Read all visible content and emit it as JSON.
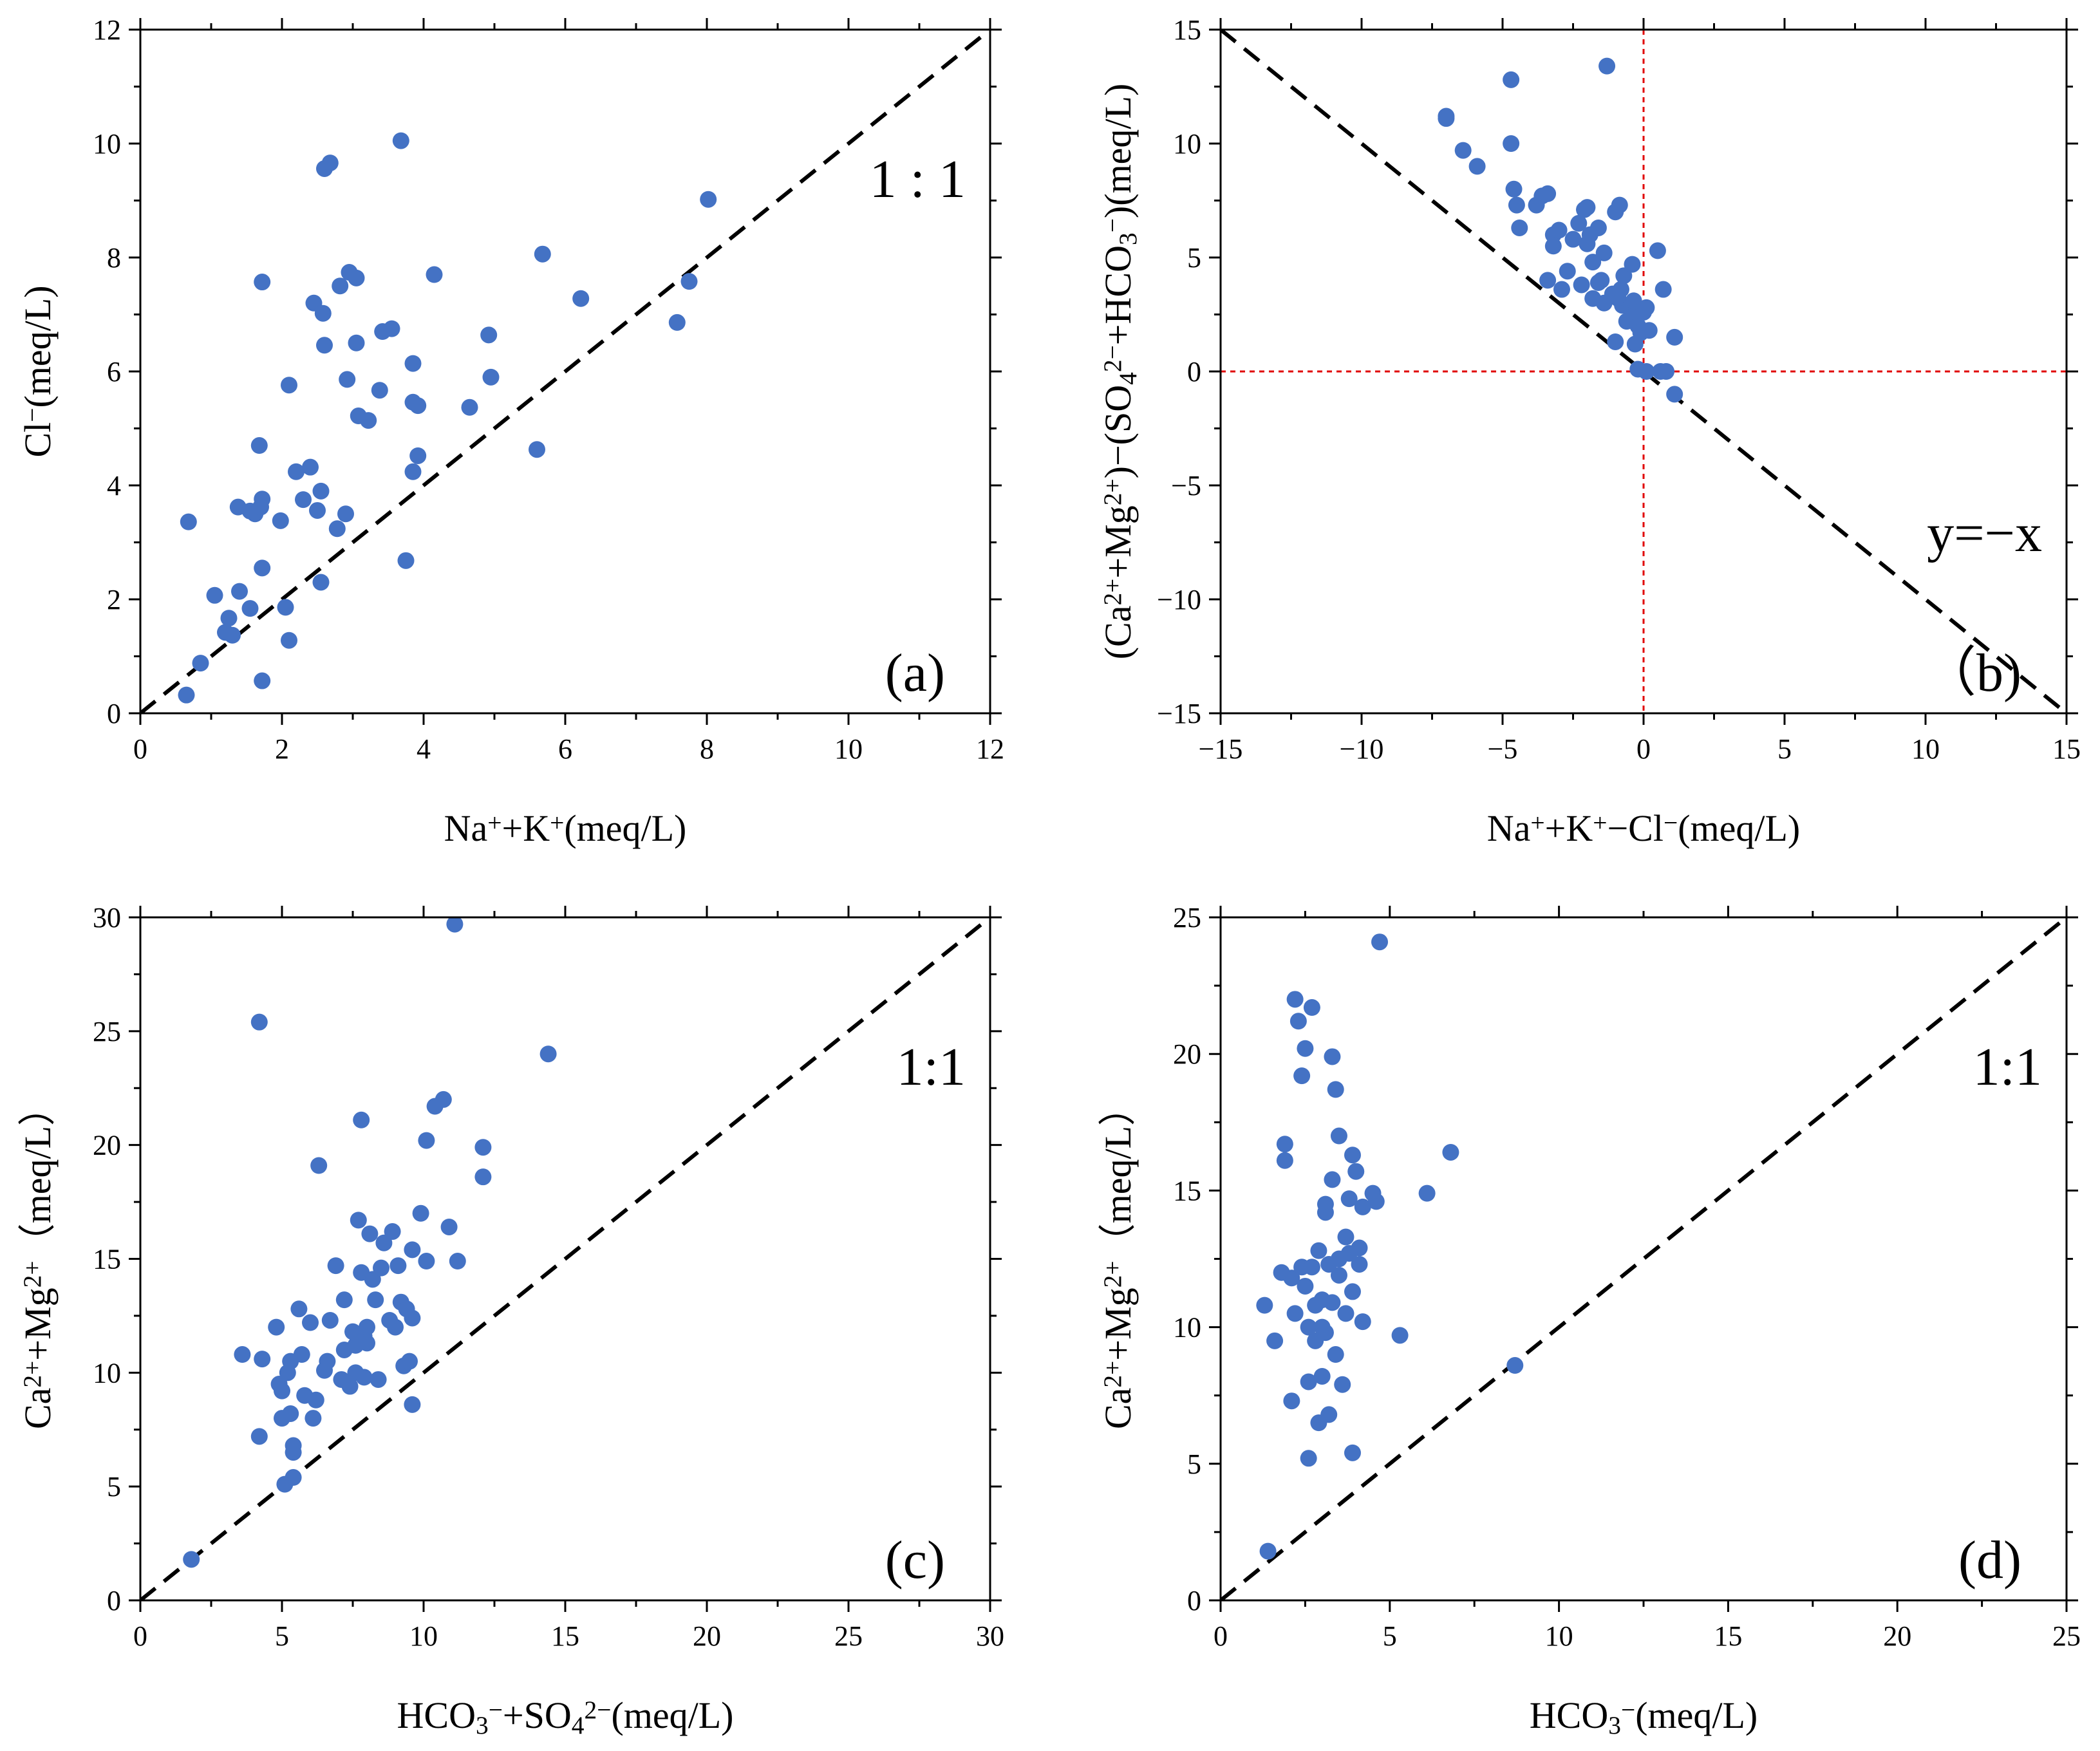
{
  "colors": {
    "point": "#4472C4",
    "axis": "#000000",
    "refline": "#000000",
    "zeroline": "#E00000"
  },
  "chart_data": [
    {
      "type": "scatter",
      "panel_label": "(a)",
      "ref_label": "1 : 1",
      "xlim": [
        0,
        12
      ],
      "ylim": [
        0,
        12
      ],
      "xticks": [
        0,
        2,
        4,
        6,
        8,
        10,
        12
      ],
      "yticks": [
        0,
        2,
        4,
        6,
        8,
        10,
        12
      ],
      "xlabel_parts": [
        [
          "Na",
          "n"
        ],
        [
          "+",
          "sup"
        ],
        [
          "+K",
          "n"
        ],
        [
          "+",
          "sup"
        ],
        [
          "(meq/L)",
          "n"
        ]
      ],
      "ylabel_parts": [
        [
          "Cl",
          "n"
        ],
        [
          "−",
          "sup"
        ],
        [
          "(meq/L)",
          "n"
        ]
      ],
      "reference": "y=x",
      "points": [
        [
          0.65,
          0.32
        ],
        [
          0.68,
          3.36
        ],
        [
          0.85,
          0.88
        ],
        [
          1.05,
          2.07
        ],
        [
          1.2,
          1.42
        ],
        [
          1.25,
          1.67
        ],
        [
          1.3,
          1.37
        ],
        [
          1.38,
          3.62
        ],
        [
          1.4,
          2.14
        ],
        [
          1.55,
          3.55
        ],
        [
          1.55,
          1.84
        ],
        [
          1.62,
          3.5
        ],
        [
          1.7,
          3.62
        ],
        [
          1.72,
          3.76
        ],
        [
          1.68,
          4.7
        ],
        [
          1.72,
          7.57
        ],
        [
          1.72,
          2.55
        ],
        [
          1.72,
          0.57
        ],
        [
          1.98,
          3.38
        ],
        [
          2.05,
          1.86
        ],
        [
          2.1,
          1.28
        ],
        [
          2.1,
          5.76
        ],
        [
          2.2,
          4.24
        ],
        [
          2.3,
          3.75
        ],
        [
          2.4,
          4.32
        ],
        [
          2.45,
          7.2
        ],
        [
          2.5,
          3.56
        ],
        [
          2.55,
          3.9
        ],
        [
          2.55,
          2.3
        ],
        [
          2.58,
          7.02
        ],
        [
          2.6,
          6.46
        ],
        [
          2.6,
          9.56
        ],
        [
          2.68,
          9.66
        ],
        [
          2.78,
          3.24
        ],
        [
          2.82,
          7.5
        ],
        [
          2.9,
          3.5
        ],
        [
          2.92,
          5.86
        ],
        [
          2.95,
          7.74
        ],
        [
          3.05,
          6.5
        ],
        [
          3.05,
          7.64
        ],
        [
          3.08,
          5.22
        ],
        [
          3.22,
          5.14
        ],
        [
          3.38,
          5.67
        ],
        [
          3.42,
          6.7
        ],
        [
          3.55,
          6.75
        ],
        [
          3.68,
          10.05
        ],
        [
          3.75,
          2.68
        ],
        [
          3.85,
          5.46
        ],
        [
          3.85,
          6.14
        ],
        [
          3.85,
          4.24
        ],
        [
          3.92,
          5.4
        ],
        [
          3.92,
          4.52
        ],
        [
          4.15,
          7.7
        ],
        [
          4.65,
          5.37
        ],
        [
          4.92,
          6.64
        ],
        [
          4.95,
          5.9
        ],
        [
          5.6,
          4.63
        ],
        [
          5.68,
          8.06
        ],
        [
          6.22,
          7.28
        ],
        [
          7.58,
          6.86
        ],
        [
          7.75,
          7.58
        ],
        [
          8.02,
          9.02
        ]
      ]
    },
    {
      "type": "scatter",
      "panel_label": "（b)",
      "ref_label": "y=−x",
      "xlim": [
        -15,
        15
      ],
      "ylim": [
        -15,
        15
      ],
      "xticks": [
        -15,
        -10,
        -5,
        0,
        5,
        10,
        15
      ],
      "yticks": [
        -15,
        -10,
        -5,
        0,
        5,
        10,
        15
      ],
      "xlabel_parts": [
        [
          "Na",
          "n"
        ],
        [
          "+",
          "sup"
        ],
        [
          "+K",
          "n"
        ],
        [
          "+",
          "sup"
        ],
        [
          "−Cl",
          "n"
        ],
        [
          "−",
          "sup"
        ],
        [
          "(meq/L)",
          "n"
        ]
      ],
      "ylabel_parts": [
        [
          "(Ca",
          "n"
        ],
        [
          "2+",
          "sup"
        ],
        [
          "+Mg",
          "n"
        ],
        [
          "2+",
          "sup"
        ],
        [
          ")−(SO",
          "n"
        ],
        [
          "4",
          "sub"
        ],
        [
          "2−",
          "sup"
        ],
        [
          "+HCO",
          "n"
        ],
        [
          "3",
          "sub"
        ],
        [
          "−",
          "sup"
        ],
        [
          ")(meq/L)",
          "n"
        ]
      ],
      "reference": "y=-x",
      "zero_lines": true,
      "points": [
        [
          -7.0,
          11.1
        ],
        [
          -7.0,
          11.2
        ],
        [
          -6.4,
          9.7
        ],
        [
          -5.9,
          9.0
        ],
        [
          -4.7,
          12.8
        ],
        [
          -4.7,
          10.0
        ],
        [
          -4.6,
          8.0
        ],
        [
          -4.5,
          7.3
        ],
        [
          -4.4,
          6.3
        ],
        [
          -3.8,
          7.3
        ],
        [
          -3.6,
          7.7
        ],
        [
          -3.4,
          7.8
        ],
        [
          -3.4,
          4.0
        ],
        [
          -3.2,
          6.0
        ],
        [
          -3.2,
          5.5
        ],
        [
          -3.0,
          6.2
        ],
        [
          -2.9,
          3.6
        ],
        [
          -2.7,
          4.4
        ],
        [
          -2.5,
          5.8
        ],
        [
          -2.3,
          6.5
        ],
        [
          -2.2,
          3.8
        ],
        [
          -2.1,
          7.1
        ],
        [
          -2.0,
          7.2
        ],
        [
          -2.0,
          5.6
        ],
        [
          -1.9,
          6.0
        ],
        [
          -1.8,
          3.2
        ],
        [
          -1.8,
          4.8
        ],
        [
          -1.6,
          6.3
        ],
        [
          -1.6,
          3.9
        ],
        [
          -1.5,
          4.0
        ],
        [
          -1.4,
          5.2
        ],
        [
          -1.4,
          3.0
        ],
        [
          -1.3,
          13.4
        ],
        [
          -1.1,
          3.4
        ],
        [
          -1.0,
          7.0
        ],
        [
          -1.0,
          1.3
        ],
        [
          -0.9,
          3.2
        ],
        [
          -0.85,
          7.3
        ],
        [
          -0.8,
          3.6
        ],
        [
          -0.75,
          2.9
        ],
        [
          -0.7,
          4.2
        ],
        [
          -0.6,
          2.2
        ],
        [
          -0.5,
          2.8
        ],
        [
          -0.4,
          2.4
        ],
        [
          -0.4,
          4.7
        ],
        [
          -0.35,
          3.1
        ],
        [
          -0.3,
          1.2
        ],
        [
          -0.2,
          2.0
        ],
        [
          -0.2,
          0.1
        ],
        [
          -0.1,
          1.7
        ],
        [
          0.0,
          2.6
        ],
        [
          0.1,
          2.8
        ],
        [
          0.1,
          0.0
        ],
        [
          0.2,
          1.8
        ],
        [
          0.5,
          5.3
        ],
        [
          0.6,
          0.0
        ],
        [
          0.7,
          3.6
        ],
        [
          0.8,
          0.0
        ],
        [
          1.1,
          1.5
        ],
        [
          1.1,
          -1.0
        ]
      ]
    },
    {
      "type": "scatter",
      "panel_label": "(c)",
      "ref_label": "1:1",
      "xlim": [
        0,
        30
      ],
      "ylim": [
        0,
        30
      ],
      "xticks": [
        0,
        5,
        10,
        15,
        20,
        25,
        30
      ],
      "yticks": [
        0,
        5,
        10,
        15,
        20,
        25,
        30
      ],
      "xlabel_parts": [
        [
          "HCO",
          "n"
        ],
        [
          "3",
          "sub"
        ],
        [
          "−",
          "sup"
        ],
        [
          "+SO",
          "n"
        ],
        [
          "4",
          "sub"
        ],
        [
          "2−",
          "sup"
        ],
        [
          "(meq/L)",
          "n"
        ]
      ],
      "ylabel_parts": [
        [
          "Ca",
          "n"
        ],
        [
          "2+",
          "sup"
        ],
        [
          "+Mg",
          "n"
        ],
        [
          "2+",
          "sup"
        ],
        [
          "（meq/L）",
          "n"
        ]
      ],
      "reference": "y=x",
      "points": [
        [
          1.8,
          1.8
        ],
        [
          3.6,
          10.8
        ],
        [
          4.2,
          25.4
        ],
        [
          4.2,
          7.2
        ],
        [
          4.3,
          10.6
        ],
        [
          4.8,
          12.0
        ],
        [
          4.9,
          9.5
        ],
        [
          5.0,
          9.2
        ],
        [
          5.0,
          8.0
        ],
        [
          5.1,
          5.1
        ],
        [
          5.2,
          10.0
        ],
        [
          5.3,
          8.2
        ],
        [
          5.3,
          10.5
        ],
        [
          5.4,
          6.8
        ],
        [
          5.4,
          6.5
        ],
        [
          5.4,
          5.4
        ],
        [
          5.6,
          12.8
        ],
        [
          5.7,
          10.8
        ],
        [
          5.8,
          9.0
        ],
        [
          6.0,
          12.2
        ],
        [
          6.1,
          8.0
        ],
        [
          6.2,
          8.8
        ],
        [
          6.3,
          19.1
        ],
        [
          6.5,
          10.1
        ],
        [
          6.6,
          10.5
        ],
        [
          6.7,
          12.3
        ],
        [
          6.9,
          14.7
        ],
        [
          7.1,
          9.7
        ],
        [
          7.2,
          13.2
        ],
        [
          7.2,
          11.0
        ],
        [
          7.4,
          9.4
        ],
        [
          7.5,
          11.8
        ],
        [
          7.6,
          11.2
        ],
        [
          7.6,
          10.0
        ],
        [
          7.7,
          16.7
        ],
        [
          7.8,
          14.4
        ],
        [
          7.8,
          21.1
        ],
        [
          7.9,
          11.6
        ],
        [
          7.9,
          9.8
        ],
        [
          8.0,
          12.0
        ],
        [
          8.0,
          11.3
        ],
        [
          8.1,
          16.1
        ],
        [
          8.2,
          14.1
        ],
        [
          8.3,
          13.2
        ],
        [
          8.4,
          9.7
        ],
        [
          8.5,
          14.6
        ],
        [
          8.6,
          15.7
        ],
        [
          8.8,
          12.3
        ],
        [
          8.9,
          16.2
        ],
        [
          9.0,
          12.0
        ],
        [
          9.1,
          14.7
        ],
        [
          9.2,
          13.1
        ],
        [
          9.3,
          10.3
        ],
        [
          9.4,
          12.8
        ],
        [
          9.5,
          10.5
        ],
        [
          9.6,
          8.6
        ],
        [
          9.6,
          12.4
        ],
        [
          9.6,
          15.4
        ],
        [
          9.9,
          17.0
        ],
        [
          10.1,
          20.2
        ],
        [
          10.1,
          14.9
        ],
        [
          10.4,
          21.7
        ],
        [
          10.7,
          22.0
        ],
        [
          10.9,
          16.4
        ],
        [
          11.1,
          29.7
        ],
        [
          11.2,
          14.9
        ],
        [
          12.1,
          19.9
        ],
        [
          12.1,
          18.6
        ],
        [
          14.4,
          24.0
        ]
      ]
    },
    {
      "type": "scatter",
      "panel_label": "(d)",
      "ref_label": "1:1",
      "xlim": [
        0,
        25
      ],
      "ylim": [
        0,
        25
      ],
      "xticks": [
        0,
        5,
        10,
        15,
        20,
        25
      ],
      "yticks": [
        0,
        5,
        10,
        15,
        20,
        25
      ],
      "xlabel_parts": [
        [
          "HCO",
          "n"
        ],
        [
          "3",
          "sub"
        ],
        [
          "−",
          "sup"
        ],
        [
          "(meq/L)",
          "n"
        ]
      ],
      "ylabel_parts": [
        [
          "Ca",
          "n"
        ],
        [
          "2+",
          "sup"
        ],
        [
          "+Mg",
          "n"
        ],
        [
          "2+",
          "sup"
        ],
        [
          "（meq/L）",
          "n"
        ]
      ],
      "reference": "y=x",
      "points": [
        [
          1.3,
          10.8
        ],
        [
          1.4,
          1.8
        ],
        [
          1.6,
          9.5
        ],
        [
          1.8,
          12.0
        ],
        [
          1.9,
          16.1
        ],
        [
          1.9,
          16.7
        ],
        [
          2.1,
          11.8
        ],
        [
          2.1,
          7.3
        ],
        [
          2.2,
          10.5
        ],
        [
          2.2,
          22.0
        ],
        [
          2.3,
          21.2
        ],
        [
          2.4,
          19.2
        ],
        [
          2.4,
          12.2
        ],
        [
          2.5,
          11.5
        ],
        [
          2.5,
          20.2
        ],
        [
          2.6,
          8.0
        ],
        [
          2.6,
          5.2
        ],
        [
          2.6,
          10.0
        ],
        [
          2.7,
          12.2
        ],
        [
          2.7,
          21.7
        ],
        [
          2.8,
          10.8
        ],
        [
          2.8,
          9.5
        ],
        [
          2.9,
          12.8
        ],
        [
          2.9,
          6.5
        ],
        [
          3.0,
          8.2
        ],
        [
          3.0,
          11.0
        ],
        [
          3.0,
          10.0
        ],
        [
          3.1,
          14.2
        ],
        [
          3.1,
          14.5
        ],
        [
          3.1,
          9.8
        ],
        [
          3.2,
          6.8
        ],
        [
          3.2,
          12.3
        ],
        [
          3.3,
          19.9
        ],
        [
          3.3,
          15.4
        ],
        [
          3.3,
          10.9
        ],
        [
          3.4,
          18.7
        ],
        [
          3.4,
          9.0
        ],
        [
          3.5,
          17.0
        ],
        [
          3.5,
          12.5
        ],
        [
          3.5,
          11.9
        ],
        [
          3.6,
          7.9
        ],
        [
          3.7,
          13.3
        ],
        [
          3.7,
          10.5
        ],
        [
          3.8,
          14.7
        ],
        [
          3.8,
          12.7
        ],
        [
          3.9,
          11.3
        ],
        [
          3.9,
          5.4
        ],
        [
          3.9,
          16.3
        ],
        [
          4.0,
          15.7
        ],
        [
          4.1,
          12.9
        ],
        [
          4.1,
          12.3
        ],
        [
          4.2,
          10.2
        ],
        [
          4.2,
          14.4
        ],
        [
          4.5,
          14.9
        ],
        [
          4.6,
          14.6
        ],
        [
          4.7,
          24.1
        ],
        [
          5.3,
          9.7
        ],
        [
          6.1,
          14.9
        ],
        [
          6.8,
          16.4
        ],
        [
          8.7,
          8.6
        ]
      ]
    }
  ]
}
